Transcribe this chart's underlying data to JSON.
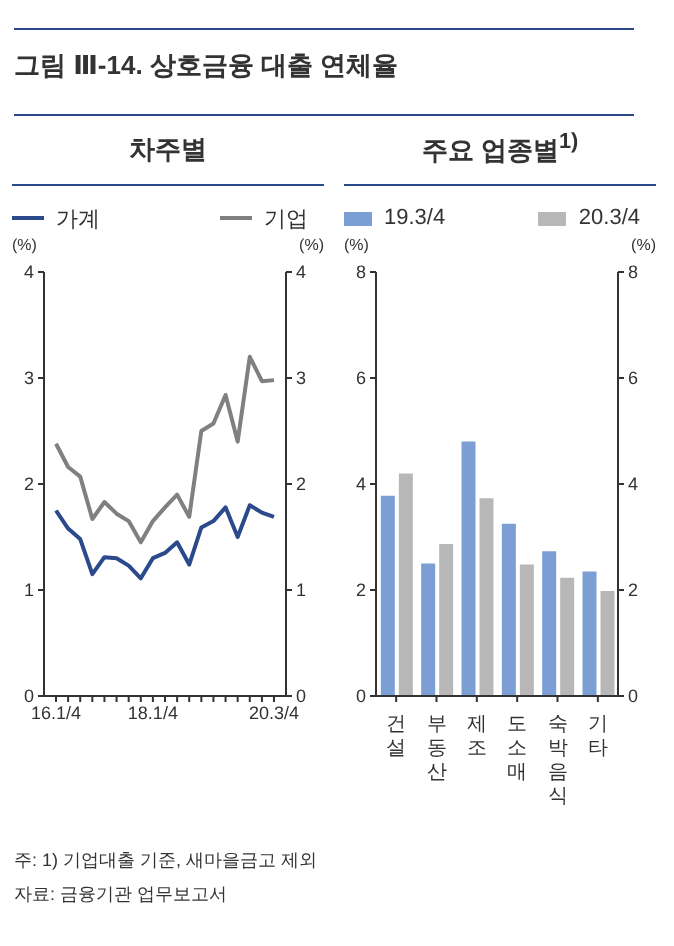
{
  "chart_data": [
    {
      "type": "line",
      "title": "그림 Ⅲ-14. 상호금융 대출 연체율",
      "subtitle": "차주별",
      "ylabel": "(%)",
      "y2label": "(%)",
      "categories": [
        "16.1/4",
        null,
        null,
        null,
        null,
        null,
        null,
        null,
        "18.1/4",
        null,
        null,
        null,
        null,
        null,
        null,
        null,
        null,
        null,
        "20.3/4"
      ],
      "series": [
        {
          "name": "가계",
          "color": "#2b4a8b",
          "values": [
            1.75,
            1.58,
            1.48,
            1.15,
            1.31,
            1.3,
            1.23,
            1.11,
            1.3,
            1.35,
            1.45,
            1.24,
            1.59,
            1.65,
            1.78,
            1.5,
            1.8,
            1.73,
            1.69
          ]
        },
        {
          "name": "기업",
          "color": "#808080",
          "values": [
            2.38,
            2.16,
            2.07,
            1.67,
            1.83,
            1.72,
            1.65,
            1.45,
            1.65,
            1.78,
            1.9,
            1.69,
            2.5,
            2.57,
            2.84,
            2.4,
            3.2,
            2.97,
            2.98
          ]
        }
      ],
      "ylim": [
        0,
        4
      ],
      "yticks": [
        0,
        1,
        2,
        3,
        4
      ],
      "y2lim": [
        0,
        4
      ],
      "y2ticks": [
        0,
        1,
        2,
        3,
        4
      ],
      "legend": "top",
      "marker": "none",
      "line_style": "solid"
    },
    {
      "type": "bar",
      "title": "주요 업종별$^{1)}$",
      "ylabel": "(%)",
      "y2label": "(%)",
      "categories": [
        "건설",
        "부동산",
        "제조",
        "도소매",
        "숙박음식",
        "기타"
      ],
      "series": [
        {
          "name": "19.3/4",
          "color": "#7b9fd4",
          "values": [
            3.78,
            2.5,
            4.8,
            3.25,
            2.73,
            2.35
          ]
        },
        {
          "name": "20.3/4",
          "color": "#b7b7b7",
          "values": [
            4.2,
            2.87,
            3.73,
            2.48,
            2.23,
            1.98
          ]
        }
      ],
      "ylim": [
        0,
        8
      ],
      "yticks": [
        0,
        2,
        4,
        6,
        8
      ],
      "y2lim": [
        0,
        8
      ],
      "y2ticks": [
        0,
        2,
        4,
        6,
        8
      ],
      "legend": "top",
      "annotations": [
        "주: 1) 기업대출 기준, 새마을금고 제외",
        "자료: 금융기관 업무보고서"
      ]
    }
  ]
}
